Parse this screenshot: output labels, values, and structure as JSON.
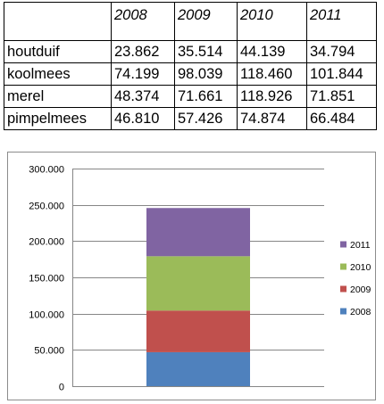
{
  "table": {
    "header": [
      "",
      "2008",
      "2009",
      "2010",
      "2011"
    ],
    "rows": [
      [
        "houtduif",
        "23.862",
        "35.514",
        "44.139",
        "34.794"
      ],
      [
        "koolmees",
        "74.199",
        "98.039",
        "118.460",
        "101.844"
      ],
      [
        "merel",
        "48.374",
        "71.661",
        "118.926",
        "71.851"
      ],
      [
        "pimpelmees",
        "46.810",
        "57.426",
        "74.874",
        "66.484"
      ]
    ]
  },
  "chart_data": {
    "type": "bar",
    "stacked": true,
    "categories": [
      ""
    ],
    "series": [
      {
        "name": "2008",
        "values": [
          46810
        ],
        "color": "#4f81bd"
      },
      {
        "name": "2009",
        "values": [
          57426
        ],
        "color": "#c0504d"
      },
      {
        "name": "2010",
        "values": [
          74874
        ],
        "color": "#9bbb59"
      },
      {
        "name": "2011",
        "values": [
          66484
        ],
        "color": "#8064a2"
      }
    ],
    "title": "",
    "xlabel": "",
    "ylabel": "",
    "ylim": [
      0,
      300000
    ],
    "yticks": [
      0,
      50000,
      100000,
      150000,
      200000,
      250000,
      300000
    ],
    "ytick_labels": [
      "0",
      "50.000",
      "100.000",
      "150.000",
      "200.000",
      "250.000",
      "300.000"
    ],
    "grid": true,
    "legend": {
      "position": "right",
      "order": [
        "2011",
        "2010",
        "2009",
        "2008"
      ]
    }
  }
}
